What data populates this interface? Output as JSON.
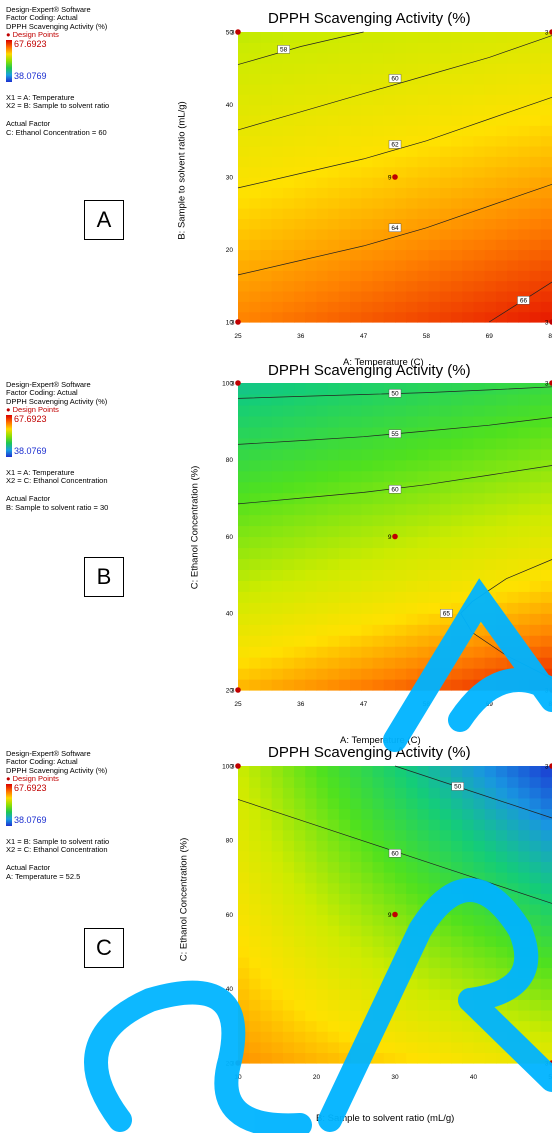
{
  "info_panel": {
    "software": "Design-Expert® Software",
    "coding": "Factor Coding: Actual",
    "response": "DPPH Scavenging Activity (%)",
    "design_points": "Design Points",
    "high_value": "67.6923",
    "low_value": "38.0769"
  },
  "panels": [
    {
      "letter": "A",
      "x1": "X1 = A: Temperature",
      "x2": "X2 = B: Sample to solvent ratio",
      "actual_factor_title": "Actual Factor",
      "actual_factor": "C: Ethanol Concentration  = 60"
    },
    {
      "letter": "B",
      "x1": "X1 = A: Temperature",
      "x2": "X2 = C: Ethanol Concentration",
      "actual_factor_title": "Actual Factor",
      "actual_factor": "B: Sample to solvent ratio = 30"
    },
    {
      "letter": "C",
      "x1": "X1 = B: Sample to solvent ratio",
      "x2": "X2 = C: Ethanol Concentration",
      "actual_factor_title": "Actual Factor",
      "actual_factor": "A: Temperature = 52.5"
    }
  ],
  "chart_data": [
    {
      "type": "heatmap",
      "title": "DPPH Scavenging Activity (%)",
      "xlabel": "A: Temperature (C)",
      "ylabel": "B: Sample to solvent ratio (mL/g)",
      "xlim": [
        25,
        80
      ],
      "ylim": [
        10,
        50
      ],
      "x_ticks": [
        "25",
        "36",
        "47",
        "58",
        "69",
        "80"
      ],
      "y_ticks": [
        "10",
        "20",
        "30",
        "40",
        "50"
      ],
      "contours": [
        {
          "label": "58",
          "points": [
            [
              25,
              45.5
            ],
            [
              36,
              48
            ],
            [
              47,
              50
            ]
          ],
          "label_at": [
            33,
            47.6
          ]
        },
        {
          "label": "60",
          "points": [
            [
              25,
              36.5
            ],
            [
              36,
              39
            ],
            [
              47,
              41.5
            ],
            [
              58,
              44
            ],
            [
              69,
              46.5
            ],
            [
              80,
              49.5
            ]
          ],
          "label_at": [
            52.5,
            43.6
          ]
        },
        {
          "label": "62",
          "points": [
            [
              25,
              28.5
            ],
            [
              36,
              30.5
            ],
            [
              47,
              32.5
            ],
            [
              58,
              35
            ],
            [
              69,
              38
            ],
            [
              80,
              41
            ]
          ],
          "label_at": [
            52.5,
            34.5
          ]
        },
        {
          "label": "64",
          "points": [
            [
              25,
              16.5
            ],
            [
              36,
              18.5
            ],
            [
              47,
              20.5
            ],
            [
              58,
              23
            ],
            [
              69,
              26
            ],
            [
              80,
              29
            ]
          ],
          "label_at": [
            52.5,
            23
          ]
        },
        {
          "label": "66",
          "points": [
            [
              69,
              10
            ],
            [
              74,
              12.5
            ],
            [
              80,
              15.5
            ]
          ],
          "label_at": [
            75,
            13
          ]
        }
      ],
      "design_points": [
        {
          "x": 25,
          "y": 50,
          "label": "3"
        },
        {
          "x": 80,
          "y": 50,
          "label": "3"
        },
        {
          "x": 52.5,
          "y": 30,
          "label": "9"
        },
        {
          "x": 25,
          "y": 10,
          "label": "3"
        },
        {
          "x": 80,
          "y": 10,
          "label": "3"
        }
      ],
      "color_field": {
        "corner_values": {
          "x0y0": 64.5,
          "x1y0": 67.6,
          "x0y1": 57.5,
          "x1y1": 59
        }
      }
    },
    {
      "type": "heatmap",
      "title": "DPPH Scavenging Activity (%)",
      "xlabel": "A: Temperature (C)",
      "ylabel": "C: Ethanol Concentration  (%)",
      "xlim": [
        25,
        80
      ],
      "ylim": [
        20,
        100
      ],
      "x_ticks": [
        "25",
        "36",
        "47",
        "58",
        "69",
        "80"
      ],
      "y_ticks": [
        "20",
        "40",
        "60",
        "80",
        "100"
      ],
      "contours": [
        {
          "label": "50",
          "points": [
            [
              25,
              96
            ],
            [
              36,
              96.5
            ],
            [
              47,
              97
            ],
            [
              58,
              97.5
            ],
            [
              69,
              98.2
            ],
            [
              80,
              99
            ]
          ],
          "label_at": [
            52.5,
            97.3
          ]
        },
        {
          "label": "55",
          "points": [
            [
              25,
              84
            ],
            [
              36,
              85
            ],
            [
              47,
              86
            ],
            [
              58,
              87.5
            ],
            [
              69,
              89
            ],
            [
              80,
              91
            ]
          ],
          "label_at": [
            52.5,
            86.8
          ]
        },
        {
          "label": "60",
          "points": [
            [
              25,
              68.5
            ],
            [
              36,
              70
            ],
            [
              47,
              71.5
            ],
            [
              58,
              73.5
            ],
            [
              69,
              76
            ],
            [
              80,
              78.5
            ]
          ],
          "label_at": [
            52.5,
            72.3
          ]
        },
        {
          "label": "65",
          "points": [
            [
              80,
              54
            ],
            [
              72,
              49
            ],
            [
              66,
              43
            ],
            [
              64,
              40
            ],
            [
              66,
              35
            ],
            [
              72,
              29
            ],
            [
              80,
              23
            ]
          ],
          "label_at": [
            61.5,
            40
          ]
        }
      ],
      "design_points": [
        {
          "x": 25,
          "y": 100,
          "label": "3"
        },
        {
          "x": 80,
          "y": 100,
          "label": "3"
        },
        {
          "x": 52.5,
          "y": 60,
          "label": "9"
        },
        {
          "x": 25,
          "y": 20,
          "label": "3"
        },
        {
          "x": 80,
          "y": 20,
          "label": "3"
        }
      ],
      "color_field": {
        "corner_values": {
          "x0y0": 63,
          "x1y0": 67.6,
          "x0y1": 47,
          "x1y1": 51
        }
      }
    },
    {
      "type": "heatmap",
      "title": "DPPH Scavenging Activity (%)",
      "xlabel": "B: Sample to solvent ratio (mL/g)",
      "ylabel": "C: Ethanol Concentration  (%)",
      "xlim": [
        10,
        50
      ],
      "ylim": [
        20,
        100
      ],
      "x_ticks": [
        "10",
        "20",
        "30",
        "40",
        "50"
      ],
      "y_ticks": [
        "20",
        "40",
        "60",
        "80",
        "100"
      ],
      "contours": [
        {
          "label": "50",
          "points": [
            [
              30,
              100
            ],
            [
              40,
              93
            ],
            [
              50,
              86
            ]
          ],
          "label_at": [
            38,
            94.5
          ]
        },
        {
          "label": "60",
          "points": [
            [
              10,
              91
            ],
            [
              20,
              84
            ],
            [
              30,
              77
            ],
            [
              40,
              70
            ],
            [
              50,
              63
            ]
          ],
          "label_at": [
            30,
            76.5
          ]
        }
      ],
      "design_points": [
        {
          "x": 10,
          "y": 100,
          "label": "3"
        },
        {
          "x": 50,
          "y": 100,
          "label": "3"
        },
        {
          "x": 30,
          "y": 60,
          "label": "9"
        },
        {
          "x": 10,
          "y": 20,
          "label": "3"
        },
        {
          "x": 50,
          "y": 20,
          "label": "3"
        }
      ],
      "color_field": {
        "corner_values": {
          "x0y0": 64,
          "x1y0": 60,
          "x0y1": 58,
          "x1y1": 38.5
        }
      }
    }
  ]
}
